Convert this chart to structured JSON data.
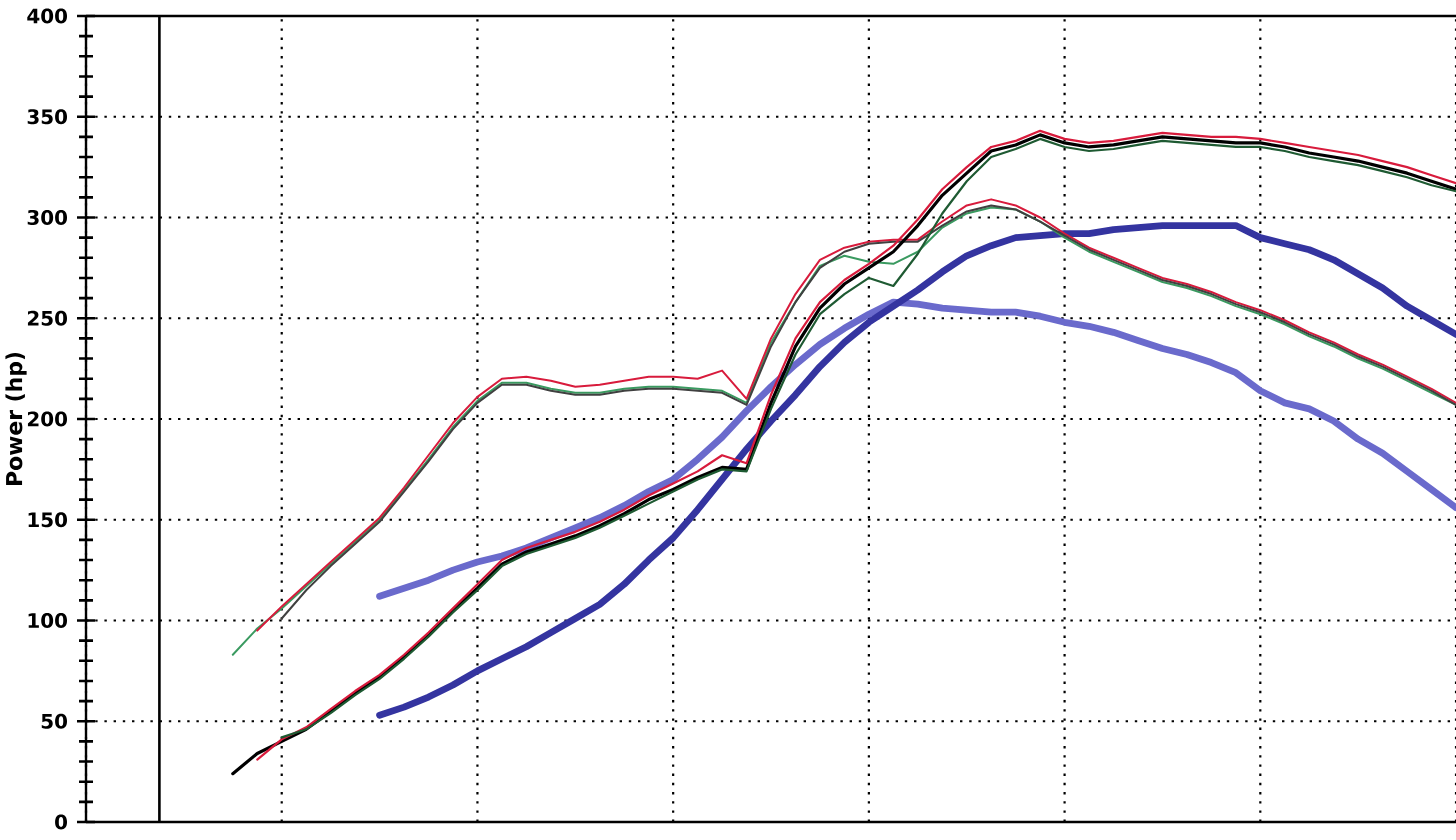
{
  "chart_data": {
    "type": "line",
    "ylabel": "Power (hp)",
    "categories": [
      null,
      null,
      null,
      null,
      null,
      null,
      null,
      null,
      null,
      null,
      null,
      null,
      null,
      null,
      null,
      null,
      null,
      null,
      null,
      null,
      null,
      null,
      null,
      null,
      null,
      null,
      null,
      null,
      null,
      null,
      null,
      null,
      null,
      null,
      null,
      null,
      null,
      null,
      null,
      null,
      null,
      null,
      null,
      null,
      null,
      null,
      null,
      null,
      null,
      null,
      null,
      null,
      null,
      null,
      null,
      null,
      null
    ],
    "ylim": [
      0,
      400
    ],
    "yticks": [
      0,
      50,
      100,
      150,
      200,
      250,
      300,
      350,
      400
    ],
    "grid": true,
    "tick_labels": "y",
    "series": [
      {
        "color": "#6a6acc",
        "values": [
          null,
          null,
          null,
          null,
          null,
          null,
          null,
          null,
          null,
          null,
          null,
          null,
          112,
          116,
          120,
          125,
          129,
          132,
          136,
          141,
          146,
          151,
          157,
          164,
          170,
          180,
          191,
          204,
          216,
          227,
          237,
          245,
          252,
          258,
          257,
          255,
          254,
          253,
          253,
          251,
          248,
          246,
          243,
          239,
          235,
          232,
          228,
          223,
          214,
          208,
          205,
          199,
          190,
          183,
          174,
          165,
          156
        ]
      },
      {
        "color": "#3434a0",
        "values": [
          null,
          null,
          null,
          null,
          null,
          null,
          null,
          null,
          null,
          null,
          null,
          null,
          53,
          57,
          62,
          68,
          75,
          81,
          87,
          94,
          101,
          108,
          118,
          130,
          141,
          155,
          170,
          185,
          199,
          212,
          226,
          238,
          248,
          256,
          264,
          273,
          281,
          286,
          290,
          291,
          292,
          292,
          294,
          295,
          296,
          296,
          296,
          296,
          290,
          287,
          284,
          279,
          272,
          265,
          256,
          249,
          242
        ]
      },
      {
        "color": "#3a9a60",
        "values": [
          null,
          null,
          null,
          null,
          null,
          null,
          83,
          96,
          106,
          117,
          128,
          139,
          150,
          165,
          180,
          196,
          209,
          218,
          218,
          215,
          213,
          213,
          215,
          216,
          216,
          215,
          214,
          208,
          238,
          258,
          276,
          281,
          278,
          277,
          283,
          295,
          302,
          305,
          304,
          298,
          290,
          283,
          278,
          273,
          268,
          265,
          261,
          256,
          252,
          247,
          241,
          236,
          230,
          225,
          219,
          213,
          207
        ]
      },
      {
        "color": "#d81b3c",
        "values": [
          null,
          null,
          null,
          null,
          null,
          null,
          null,
          95,
          107,
          118,
          129,
          140,
          151,
          166,
          182,
          198,
          211,
          220,
          221,
          219,
          216,
          217,
          219,
          221,
          221,
          220,
          224,
          210,
          240,
          262,
          279,
          285,
          288,
          289,
          289,
          298,
          306,
          309,
          306,
          300,
          292,
          285,
          280,
          275,
          270,
          267,
          263,
          258,
          254,
          249,
          243,
          238,
          232,
          227,
          221,
          215,
          208
        ]
      },
      {
        "color": "#404040",
        "values": [
          null,
          null,
          null,
          null,
          null,
          null,
          null,
          null,
          101,
          115,
          127,
          138,
          149,
          164,
          179,
          195,
          208,
          217,
          217,
          214,
          212,
          212,
          214,
          215,
          215,
          214,
          213,
          207,
          236,
          258,
          275,
          283,
          287,
          288,
          288,
          296,
          303,
          306,
          304,
          298,
          291,
          284,
          279,
          274,
          269,
          266,
          262,
          257,
          253,
          248,
          242,
          237,
          231,
          226,
          220,
          214,
          207
        ]
      },
      {
        "color": "#000000",
        "values": [
          null,
          null,
          null,
          null,
          null,
          null,
          24,
          34,
          40,
          46,
          55,
          64,
          72,
          82,
          93,
          105,
          116,
          128,
          134,
          138,
          142,
          147,
          153,
          160,
          165,
          171,
          176,
          175,
          208,
          236,
          255,
          267,
          275,
          283,
          296,
          311,
          322,
          333,
          336,
          341,
          337,
          335,
          336,
          338,
          340,
          339,
          338,
          337,
          337,
          335,
          332,
          330,
          328,
          325,
          322,
          318,
          314
        ]
      },
      {
        "color": "#d81b3c",
        "values": [
          null,
          null,
          null,
          null,
          null,
          null,
          null,
          31,
          41,
          47,
          56,
          65,
          73,
          83,
          94,
          106,
          118,
          130,
          136,
          140,
          144,
          149,
          155,
          162,
          168,
          174,
          182,
          178,
          212,
          240,
          258,
          269,
          277,
          286,
          299,
          314,
          325,
          335,
          338,
          343,
          339,
          337,
          338,
          340,
          342,
          341,
          340,
          340,
          339,
          337,
          335,
          333,
          331,
          328,
          325,
          321,
          317
        ]
      },
      {
        "color": "#1e5a32",
        "values": [
          null,
          null,
          null,
          null,
          null,
          null,
          null,
          null,
          42,
          46,
          54,
          63,
          71,
          81,
          92,
          104,
          115,
          127,
          133,
          137,
          141,
          146,
          152,
          158,
          164,
          170,
          175,
          174,
          205,
          232,
          252,
          262,
          270,
          266,
          282,
          302,
          318,
          330,
          334,
          339,
          335,
          333,
          334,
          336,
          338,
          337,
          336,
          335,
          335,
          333,
          330,
          328,
          326,
          323,
          320,
          316,
          313
        ]
      }
    ]
  }
}
